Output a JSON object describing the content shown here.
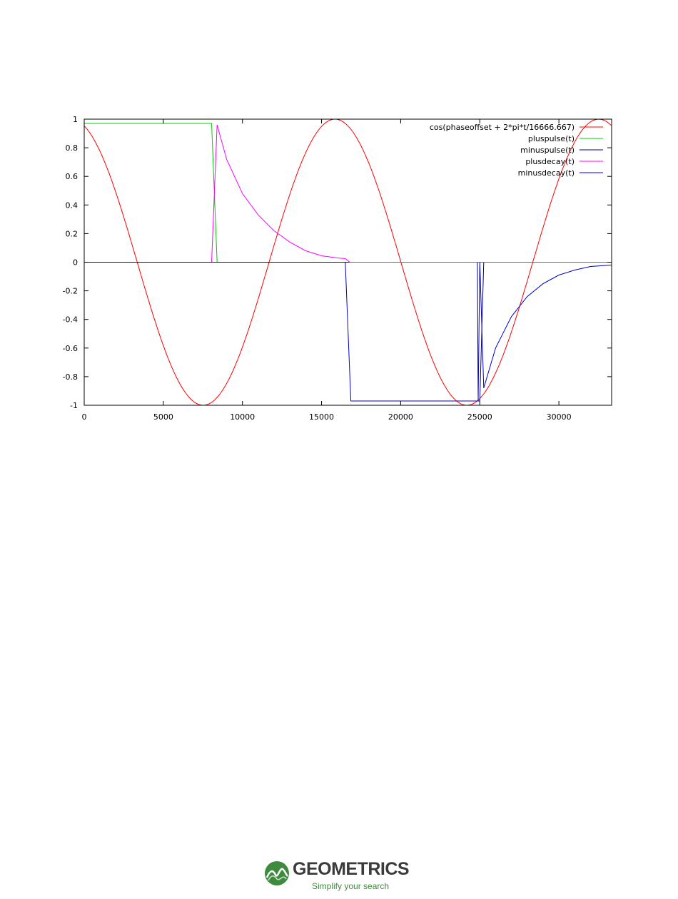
{
  "chart_data": {
    "type": "line",
    "xlim": [
      0,
      33333
    ],
    "ylim": [
      -1,
      1
    ],
    "x_ticks": [
      "0",
      "5000",
      "10000",
      "15000",
      "20000",
      "25000",
      "30000"
    ],
    "x_tick_values": [
      0,
      5000,
      10000,
      15000,
      20000,
      25000,
      30000
    ],
    "y_ticks": [
      "1",
      "0.8",
      "0.6",
      "0.4",
      "0.2",
      "0",
      "-0.2",
      "-0.4",
      "-0.6",
      "-0.8",
      "-1"
    ],
    "y_tick_values": [
      1,
      0.8,
      0.6,
      0.4,
      0.2,
      0,
      -0.2,
      -0.4,
      -0.6,
      -0.8,
      -1
    ],
    "grid": false,
    "legend_position": "top-right",
    "series": [
      {
        "name": "cos(phaseoffset + 2*pi*t/16666.667)",
        "color": "#ff0000",
        "function": "cos",
        "period": 16666.667,
        "peak_t": 15850,
        "amplitude": 1
      },
      {
        "name": "pluspulse(t)",
        "color": "#00cc00",
        "points": [
          [
            0,
            0.97
          ],
          [
            8050,
            0.97
          ],
          [
            8400,
            0
          ],
          [
            33333,
            0
          ]
        ]
      },
      {
        "name": "minuspulse(t)",
        "color": "#000080",
        "points": [
          [
            0,
            0
          ],
          [
            24850,
            0
          ],
          [
            24900,
            -0.97
          ],
          [
            25000,
            -0.97
          ],
          [
            25250,
            0
          ],
          [
            33333,
            0
          ]
        ]
      },
      {
        "name": "plusdecay(t)",
        "color": "#ff00ff",
        "points": [
          [
            0,
            0
          ],
          [
            8050,
            0
          ],
          [
            8400,
            0.96
          ],
          [
            9000,
            0.72
          ],
          [
            10000,
            0.48
          ],
          [
            11000,
            0.33
          ],
          [
            12000,
            0.22
          ],
          [
            13000,
            0.14
          ],
          [
            14000,
            0.08
          ],
          [
            15000,
            0.045
          ],
          [
            16000,
            0.03
          ],
          [
            16500,
            0.025
          ],
          [
            16800,
            0
          ],
          [
            33333,
            0
          ]
        ]
      },
      {
        "name": "minusdecay(t)",
        "color": "#0000cc",
        "points": [
          [
            0,
            0
          ],
          [
            16500,
            0
          ],
          [
            16850,
            -0.97
          ],
          [
            24900,
            -0.97
          ],
          [
            25000,
            0
          ],
          [
            25250,
            -0.88
          ],
          [
            26000,
            -0.6
          ],
          [
            27000,
            -0.38
          ],
          [
            28000,
            -0.24
          ],
          [
            29000,
            -0.15
          ],
          [
            30000,
            -0.09
          ],
          [
            31000,
            -0.055
          ],
          [
            32000,
            -0.03
          ],
          [
            33333,
            -0.02
          ]
        ]
      }
    ]
  },
  "footer": {
    "brand_name": "GEOMETRICS",
    "tagline": "Simplify your search"
  },
  "colors": {
    "brand_green": "#3e8a3e",
    "brand_gray": "#3b3b3b"
  }
}
